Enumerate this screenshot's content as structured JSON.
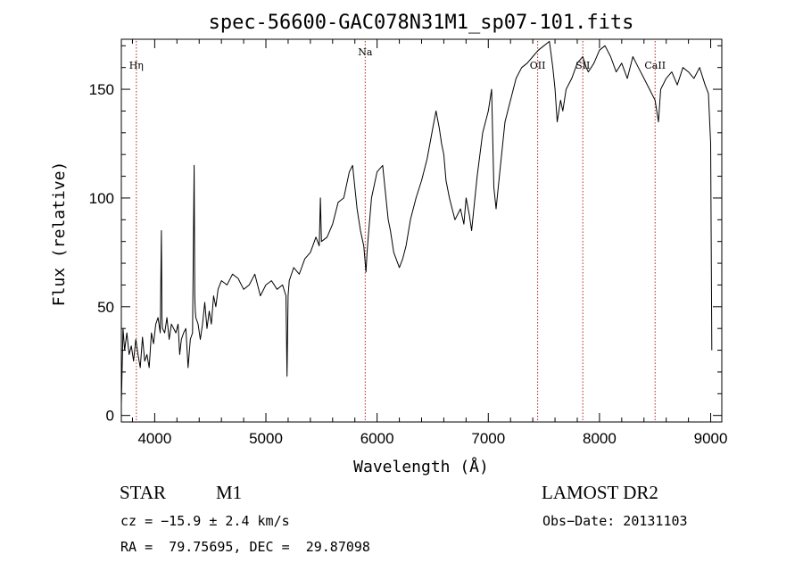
{
  "chart_data": {
    "type": "line",
    "title": "spec-56600-GAC078N31M1_sp07-101.fits",
    "xlabel": "Wavelength (Å)",
    "ylabel": "Flux (relative)",
    "xlim": [
      3700,
      9100
    ],
    "ylim": [
      -3,
      173
    ],
    "xticks": [
      4000,
      5000,
      6000,
      7000,
      8000,
      9000
    ],
    "yticks": [
      0,
      50,
      100,
      150
    ],
    "grid": false,
    "series": [
      {
        "color": "#000000",
        "x": [
          3700,
          3715,
          3730,
          3750,
          3770,
          3790,
          3810,
          3830,
          3850,
          3870,
          3890,
          3910,
          3930,
          3950,
          3970,
          3990,
          4010,
          4030,
          4050,
          4060,
          4065,
          4070,
          4090,
          4110,
          4130,
          4150,
          4170,
          4190,
          4210,
          4225,
          4240,
          4260,
          4280,
          4300,
          4320,
          4340,
          4355,
          4360,
          4365,
          4370,
          4390,
          4410,
          4430,
          4450,
          4470,
          4490,
          4510,
          4530,
          4550,
          4570,
          4600,
          4650,
          4700,
          4750,
          4800,
          4850,
          4900,
          4950,
          5000,
          5050,
          5100,
          5150,
          5180,
          5190,
          5200,
          5210,
          5250,
          5300,
          5350,
          5400,
          5450,
          5480,
          5490,
          5500,
          5550,
          5600,
          5650,
          5700,
          5750,
          5780,
          5800,
          5820,
          5850,
          5880,
          5900,
          5910,
          5920,
          5950,
          6000,
          6050,
          6100,
          6120,
          6150,
          6200,
          6230,
          6260,
          6300,
          6350,
          6400,
          6450,
          6500,
          6530,
          6560,
          6580,
          6600,
          6620,
          6650,
          6700,
          6750,
          6780,
          6800,
          6830,
          6850,
          6880,
          6900,
          6950,
          7000,
          7030,
          7050,
          7070,
          7100,
          7120,
          7150,
          7200,
          7250,
          7300,
          7350,
          7400,
          7450,
          7500,
          7550,
          7580,
          7600,
          7620,
          7650,
          7670,
          7700,
          7750,
          7800,
          7850,
          7880,
          7900,
          7950,
          8000,
          8050,
          8100,
          8150,
          8200,
          8250,
          8300,
          8350,
          8400,
          8450,
          8500,
          8530,
          8550,
          8600,
          8650,
          8700,
          8750,
          8800,
          8850,
          8900,
          8950,
          8980,
          9000,
          9010
        ],
        "y": [
          5,
          40,
          30,
          38,
          28,
          32,
          25,
          35,
          28,
          22,
          36,
          25,
          28,
          22,
          38,
          33,
          42,
          45,
          38,
          85,
          45,
          40,
          38,
          45,
          35,
          42,
          40,
          38,
          42,
          28,
          35,
          38,
          40,
          22,
          35,
          38,
          115,
          55,
          48,
          45,
          42,
          35,
          42,
          52,
          40,
          48,
          42,
          55,
          50,
          58,
          62,
          60,
          65,
          63,
          58,
          60,
          65,
          55,
          60,
          62,
          58,
          60,
          55,
          18,
          55,
          62,
          68,
          65,
          72,
          75,
          82,
          78,
          100,
          80,
          82,
          88,
          98,
          100,
          112,
          115,
          105,
          95,
          85,
          78,
          66,
          75,
          82,
          100,
          112,
          115,
          90,
          85,
          75,
          68,
          72,
          78,
          90,
          100,
          108,
          118,
          132,
          140,
          132,
          125,
          120,
          108,
          100,
          90,
          95,
          88,
          100,
          92,
          85,
          100,
          110,
          130,
          140,
          150,
          105,
          95,
          110,
          120,
          135,
          145,
          155,
          160,
          162,
          165,
          168,
          170,
          172,
          160,
          150,
          135,
          145,
          140,
          150,
          155,
          162,
          165,
          160,
          158,
          162,
          168,
          170,
          165,
          158,
          162,
          155,
          165,
          160,
          155,
          150,
          145,
          135,
          150,
          155,
          158,
          152,
          160,
          158,
          155,
          160,
          152,
          148,
          125,
          30
        ]
      }
    ],
    "lines": [
      {
        "label": "Hη",
        "x": 3835
      },
      {
        "label": "Na",
        "x": 5893
      },
      {
        "label": "OII",
        "x": 7444
      },
      {
        "label": "SII",
        "x": 7850
      },
      {
        "label": "CaII",
        "x": 8500
      }
    ]
  },
  "info": {
    "object_class": "STAR",
    "subclass": "M1",
    "survey": "LAMOST DR2",
    "cz": "cz = −15.9 ± 2.4 km/s",
    "obs_date": "Obs−Date: 20131103",
    "radec": "RA =  79.75695, DEC =  29.87098"
  },
  "colors": {
    "spectrum": "#000000",
    "line_markers": "#b22222",
    "axes": "#000000"
  }
}
